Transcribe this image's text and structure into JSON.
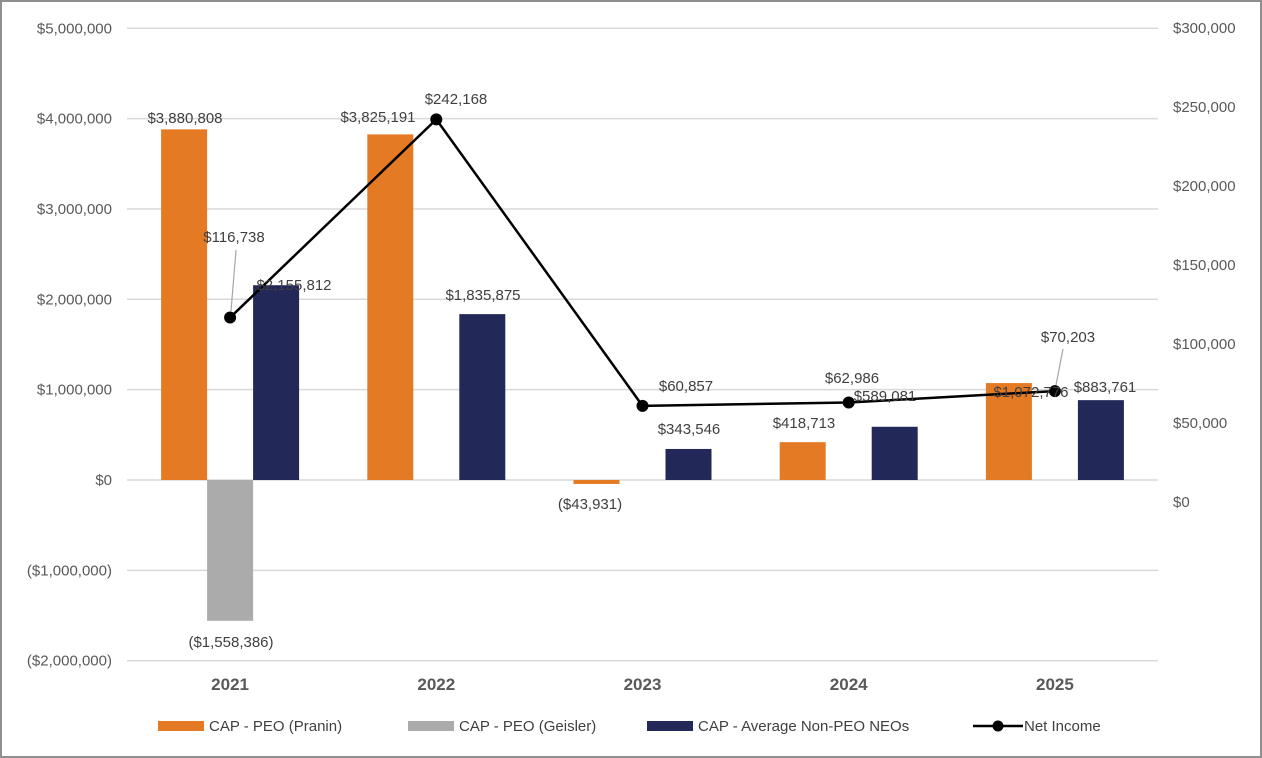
{
  "chart_data": {
    "type": "bar",
    "title": "",
    "xlabel": "",
    "ylabel": "",
    "categories": [
      "2021",
      "2022",
      "2023",
      "2024",
      "2025"
    ],
    "series": [
      {
        "name": "CAP - PEO (Pranin)",
        "type": "bar",
        "axis": "left",
        "color": "#E57A25",
        "values": [
          3880808,
          3825191,
          -43931,
          418713,
          1072776
        ],
        "labels": [
          "$3,880,808",
          "$3,825,191",
          "($43,931)",
          "$418,713",
          "$1,072,776"
        ]
      },
      {
        "name": "CAP - PEO (Geisler)",
        "type": "bar",
        "axis": "left",
        "color": "#ABABAB",
        "values": [
          -1558386,
          null,
          null,
          null,
          null
        ],
        "labels": [
          "($1,558,386)",
          null,
          null,
          null,
          null
        ]
      },
      {
        "name": "CAP - Average Non-PEO NEOs",
        "type": "bar",
        "axis": "left",
        "color": "#222857",
        "values": [
          2155812,
          1835875,
          343546,
          589081,
          883761
        ],
        "labels": [
          "$2,155,812",
          "$1,835,875",
          "$343,546",
          "$589,081",
          "$883,761"
        ]
      },
      {
        "name": "Net Income",
        "type": "line",
        "axis": "right",
        "color": "#000000",
        "values": [
          116738,
          242168,
          60857,
          62986,
          70203
        ],
        "labels": [
          "$116,738",
          "$242,168",
          "$60,857",
          "$62,986",
          "$70,203"
        ]
      }
    ],
    "left_axis": {
      "ylim": [
        -2000000,
        5000000
      ],
      "ticks": [
        5000000,
        4000000,
        3000000,
        2000000,
        1000000,
        0,
        -1000000,
        -2000000
      ],
      "tick_labels": [
        "$5,000,000",
        "$4,000,000",
        "$3,000,000",
        "$2,000,000",
        "$1,000,000",
        "$0",
        "($1,000,000)",
        "($2,000,000)"
      ]
    },
    "right_axis": {
      "ylim": [
        0,
        300000
      ],
      "ticks": [
        300000,
        250000,
        200000,
        150000,
        100000,
        50000,
        0
      ],
      "tick_labels": [
        "$300,000",
        "$250,000",
        "$200,000",
        "$150,000",
        "$100,000",
        "$50,000",
        "$0"
      ]
    },
    "grid": true,
    "legend": {
      "position": "bottom",
      "entries": [
        "CAP - PEO (Pranin)",
        "CAP - PEO (Geisler)",
        "CAP - Average Non-PEO NEOs",
        "Net Income"
      ]
    },
    "gridline_color": "#D9D9D9"
  }
}
